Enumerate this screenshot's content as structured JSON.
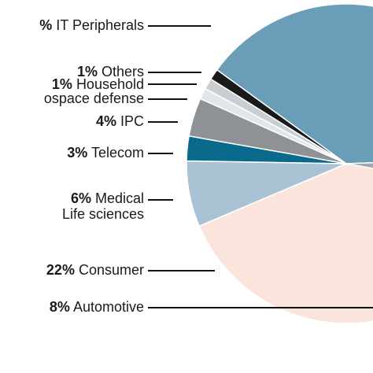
{
  "chart_data": {
    "type": "pie",
    "title": "",
    "colors": {
      "it": "#6a9db7",
      "others": "#1a1a1a",
      "household": "#c8ced3",
      "aerospace": "#e2e6e9",
      "ipc": "#8e9196",
      "telecom": "#0a6a8c",
      "medical": "#a9c3d4",
      "consumer": "#fbe4dc",
      "automotive": "#a3a6aa"
    },
    "slices": [
      {
        "key": "it",
        "pct": "%",
        "name": "IT Peripherals"
      },
      {
        "key": "others",
        "pct": "1%",
        "name": "Others"
      },
      {
        "key": "household",
        "pct": "1%",
        "name": "Household"
      },
      {
        "key": "aerospace",
        "pct": "",
        "name": "ospace defense"
      },
      {
        "key": "ipc",
        "pct": "4%",
        "name": "IPC"
      },
      {
        "key": "telecom",
        "pct": "3%",
        "name": "Telecom"
      },
      {
        "key": "medical",
        "pct": "6%",
        "name": "Medical",
        "name2": "Life sciences"
      },
      {
        "key": "consumer",
        "pct": "22%",
        "name": "Consumer"
      },
      {
        "key": "automotive",
        "pct": "8%",
        "name": "Automotive"
      }
    ]
  }
}
